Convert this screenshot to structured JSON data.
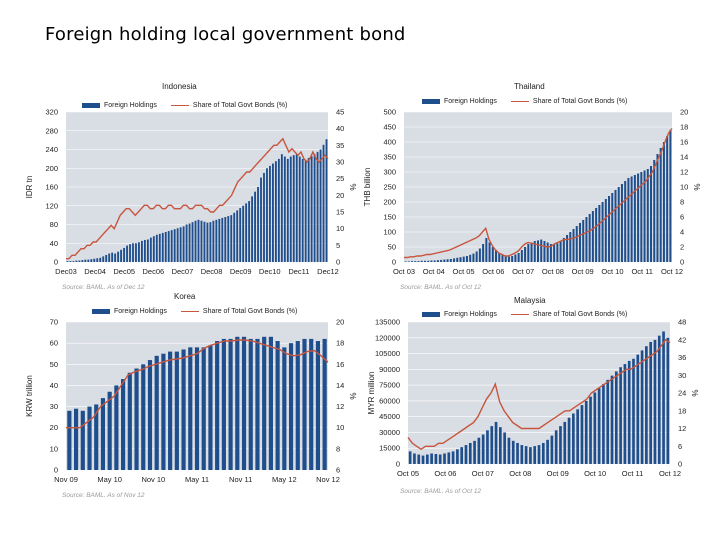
{
  "title": "Foreign holding local government bond",
  "colors": {
    "bar": "#1f4e8c",
    "line": "#c8553d",
    "plot_bg": "#d9dde4",
    "grid": "#ffffff"
  },
  "chart_data": [
    {
      "id": "indonesia",
      "type": "bar+line",
      "title": "Indonesia",
      "legend": [
        "Foreign Holdings",
        "Share of Total Govt Bonds (%)"
      ],
      "ylabel_left": "IDR tn",
      "ylabel_right": "%",
      "ylim_left": [
        0,
        320
      ],
      "yticks_left": [
        0,
        40,
        80,
        120,
        160,
        200,
        240,
        280,
        320
      ],
      "ylim_right": [
        0,
        45
      ],
      "yticks_right": [
        0,
        5,
        10,
        15,
        20,
        25,
        30,
        35,
        40,
        45
      ],
      "xticks": [
        "Dec03",
        "Dec04",
        "Dec05",
        "Dec06",
        "Dec07",
        "Dec08",
        "Dec09",
        "Dec10",
        "Dec11",
        "Dec12"
      ],
      "source": "Source: BAML. As of Dec 12",
      "bars": [
        2,
        2,
        2,
        3,
        3,
        4,
        5,
        5,
        6,
        7,
        8,
        9,
        12,
        15,
        18,
        20,
        18,
        22,
        26,
        30,
        35,
        38,
        40,
        40,
        42,
        45,
        47,
        48,
        52,
        55,
        58,
        60,
        62,
        64,
        66,
        68,
        70,
        72,
        74,
        76,
        80,
        82,
        85,
        88,
        90,
        88,
        86,
        84,
        85,
        88,
        90,
        92,
        94,
        96,
        98,
        100,
        105,
        110,
        115,
        120,
        125,
        130,
        140,
        150,
        160,
        180,
        190,
        200,
        205,
        210,
        215,
        220,
        230,
        225,
        220,
        225,
        228,
        230,
        225,
        220,
        218,
        222,
        226,
        230,
        235,
        240,
        250,
        262
      ],
      "line": [
        1,
        1,
        2,
        2,
        3,
        4,
        4,
        5,
        5,
        6,
        6,
        7,
        8,
        9,
        10,
        11,
        10,
        12,
        14,
        15,
        16,
        16,
        15,
        14,
        15,
        16,
        17,
        17,
        16,
        16,
        17,
        17,
        16,
        16,
        17,
        17,
        16,
        16,
        16,
        17,
        17,
        16,
        16,
        17,
        17,
        17,
        16,
        16,
        15,
        15,
        16,
        17,
        17,
        18,
        19,
        20,
        22,
        24,
        25,
        26,
        27,
        27,
        28,
        29,
        30,
        31,
        32,
        33,
        34,
        35,
        35,
        36,
        37,
        35,
        33,
        34,
        33,
        32,
        33,
        31,
        30,
        31,
        33,
        31,
        30,
        31,
        32,
        31
      ]
    },
    {
      "id": "thailand",
      "type": "bar+line",
      "title": "Thailand",
      "legend": [
        "Foreign Holdings",
        "Share of Total Govt Bonds (%)"
      ],
      "ylabel_left": "THB billion",
      "ylabel_right": "%",
      "ylim_left": [
        0,
        500
      ],
      "yticks_left": [
        0,
        50,
        100,
        150,
        200,
        250,
        300,
        350,
        400,
        450,
        500
      ],
      "ylim_right": [
        0,
        20
      ],
      "yticks_right": [
        0,
        2,
        4,
        6,
        8,
        10,
        12,
        14,
        16,
        18,
        20
      ],
      "xticks": [
        "Oct 03",
        "Oct 04",
        "Oct 05",
        "Oct 06",
        "Oct 07",
        "Oct 08",
        "Oct 09",
        "Oct 10",
        "Oct 11",
        "Oct 12"
      ],
      "source": "Source: BAML. As of Oct 12",
      "bars": [
        2,
        2,
        3,
        3,
        3,
        4,
        4,
        4,
        5,
        5,
        6,
        7,
        8,
        9,
        10,
        12,
        14,
        16,
        18,
        20,
        24,
        28,
        35,
        45,
        60,
        80,
        65,
        50,
        40,
        30,
        25,
        20,
        18,
        20,
        25,
        30,
        40,
        50,
        60,
        65,
        70,
        72,
        75,
        70,
        65,
        60,
        58,
        62,
        70,
        80,
        90,
        100,
        110,
        120,
        130,
        140,
        150,
        160,
        170,
        180,
        190,
        200,
        210,
        220,
        230,
        240,
        250,
        260,
        270,
        280,
        285,
        290,
        295,
        300,
        305,
        310,
        320,
        340,
        360,
        380,
        400,
        420,
        440
      ],
      "line": [
        0.6,
        0.6,
        0.7,
        0.7,
        0.8,
        0.8,
        0.9,
        1,
        1,
        1.1,
        1.2,
        1.3,
        1.4,
        1.5,
        1.6,
        1.8,
        2,
        2.2,
        2.4,
        2.6,
        2.8,
        3,
        3.2,
        3.5,
        4,
        4.5,
        3,
        2.2,
        1.6,
        1.2,
        1,
        0.8,
        0.8,
        1,
        1.2,
        1.5,
        2,
        2.4,
        2.6,
        2.5,
        2.4,
        2.3,
        2.2,
        2.1,
        2,
        2.1,
        2.4,
        2.6,
        2.8,
        3,
        3,
        3.1,
        3.2,
        3.4,
        3.6,
        3.8,
        4,
        4.2,
        4.5,
        4.8,
        5.2,
        5.6,
        6,
        6.4,
        6.8,
        7.2,
        7.6,
        8,
        8.4,
        8.8,
        9.2,
        9.6,
        10,
        10.4,
        10.8,
        11.4,
        12,
        13,
        14,
        15,
        16.2,
        17.2,
        17.8
      ]
    },
    {
      "id": "korea",
      "type": "bar+line",
      "title": "Korea",
      "legend": [
        "Foreign Holdings",
        "Share of Total Govt Bonds (%)"
      ],
      "ylabel_left": "KRW trillion",
      "ylabel_right": "%",
      "ylim_left": [
        0,
        70
      ],
      "yticks_left": [
        0,
        10,
        20,
        30,
        40,
        50,
        60,
        70
      ],
      "ylim_right": [
        6,
        20
      ],
      "yticks_right": [
        6,
        8,
        10,
        12,
        14,
        16,
        18,
        20
      ],
      "xticks": [
        "Nov 09",
        "May 10",
        "Nov 10",
        "May 11",
        "Nov 11",
        "May 12",
        "Nov 12"
      ],
      "source": "Source: BAML. As of Nov 12",
      "bars": [
        28,
        29,
        28,
        30,
        31,
        34,
        37,
        40,
        43,
        46,
        48,
        50,
        52,
        54,
        55,
        56,
        56,
        57,
        58,
        58,
        58,
        59,
        61,
        62,
        62,
        63,
        63,
        62,
        62,
        63,
        63,
        61,
        58,
        60,
        61,
        62,
        62,
        61,
        62
      ],
      "line": [
        10,
        10,
        10,
        10.5,
        11,
        12,
        12.5,
        13,
        14,
        15,
        15.3,
        15.5,
        15.8,
        16,
        16.2,
        16.4,
        16.5,
        16.6,
        16.8,
        17,
        17.5,
        17.8,
        18,
        18.2,
        18.2,
        18.3,
        18.3,
        18.2,
        18,
        17.8,
        17.6,
        17.4,
        17,
        16.8,
        16.9,
        17.2,
        17.3,
        16.8,
        16.2
      ]
    },
    {
      "id": "malaysia",
      "type": "bar+line",
      "title": "Malaysia",
      "legend": [
        "Foreign Holdings",
        "Share of Total Govt Bonds (%)"
      ],
      "ylabel_left": "MYR million",
      "ylabel_right": "%",
      "ylim_left": [
        0,
        135000
      ],
      "yticks_left": [
        0,
        15000,
        30000,
        45000,
        60000,
        75000,
        90000,
        105000,
        120000,
        135000
      ],
      "ylim_right": [
        0,
        48
      ],
      "yticks_right": [
        0,
        6,
        12,
        18,
        24,
        30,
        36,
        42,
        48
      ],
      "xticks": [
        "Oct 05",
        "Oct 06",
        "Oct 07",
        "Oct 08",
        "Oct 09",
        "Oct 10",
        "Oct 11",
        "Oct 12"
      ],
      "source": "Source: BAML. As of Oct 12",
      "bars": [
        12000,
        10000,
        9000,
        8000,
        9000,
        10000,
        9500,
        9000,
        10000,
        11000,
        12000,
        14000,
        16000,
        18000,
        20000,
        22000,
        25000,
        28000,
        32000,
        36000,
        40000,
        35000,
        30000,
        25000,
        22000,
        20000,
        18000,
        17000,
        16000,
        17000,
        18000,
        20000,
        23000,
        27000,
        32000,
        36000,
        40000,
        44000,
        48000,
        52000,
        56000,
        60000,
        64000,
        68000,
        72000,
        76000,
        80000,
        84000,
        88000,
        92000,
        95000,
        98000,
        100000,
        104000,
        108000,
        112000,
        116000,
        118000,
        122000,
        126000,
        120000
      ],
      "line": [
        9,
        7,
        6,
        5,
        6,
        6,
        6,
        7,
        7,
        8,
        9,
        10,
        11,
        12,
        13,
        14,
        16,
        19,
        22,
        24,
        27,
        21,
        18,
        16,
        14,
        13,
        12,
        12,
        12,
        12,
        12,
        13,
        14,
        15,
        16,
        17,
        18,
        18,
        19,
        20,
        21,
        22,
        24,
        25,
        26,
        27,
        28,
        29,
        30,
        31,
        32,
        32,
        33,
        34,
        35,
        36,
        37,
        38,
        40,
        42,
        41
      ]
    }
  ]
}
